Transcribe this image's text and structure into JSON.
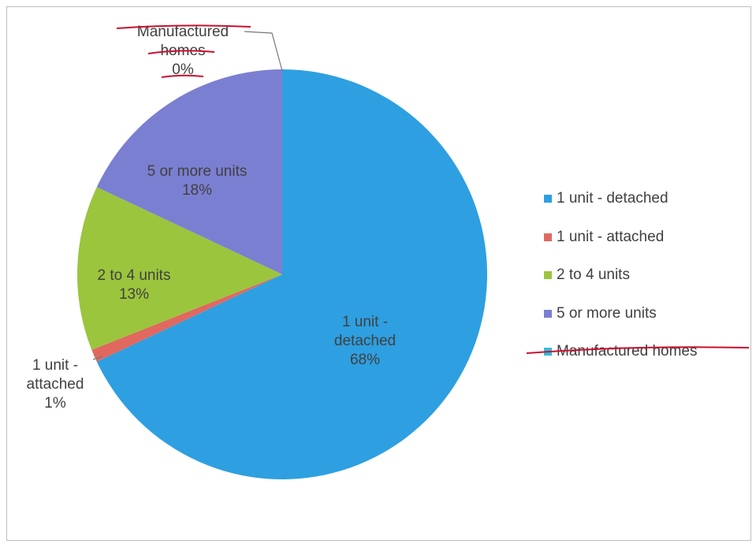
{
  "chart_data": {
    "type": "pie",
    "categories": [
      "1 unit - detached",
      "1 unit - attached",
      "2 to 4 units",
      "5 or more units",
      "Manufactured homes"
    ],
    "values": [
      68,
      1,
      13,
      18,
      0
    ],
    "value_labels": [
      "68%",
      "1%",
      "13%",
      "18%",
      "0%"
    ],
    "colors": [
      "#2e9fe0",
      "#e0685f",
      "#9bc53d",
      "#7b7fd1",
      "#2bbfd9"
    ],
    "legend": "right"
  }
}
